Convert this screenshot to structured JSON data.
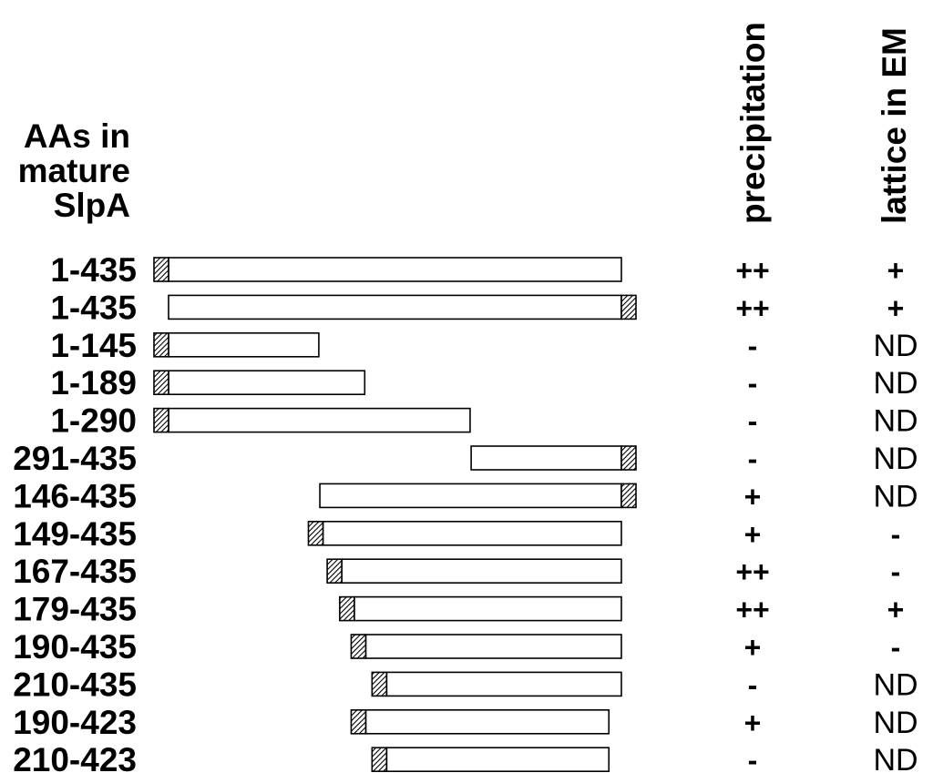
{
  "header": {
    "row_label_lines": [
      "AAs in",
      "mature",
      "SlpA"
    ],
    "columns": [
      "precipitation",
      "lattice in EM"
    ]
  },
  "colors": {
    "ink": "#000000",
    "bar_fill": "#ffffff"
  },
  "icons": {
    "tag": "hatched-tag-box"
  },
  "constructs": [
    {
      "label": "1-435",
      "start": 1,
      "end": 435,
      "tag": "N",
      "precipitation": "++",
      "lattice": "+"
    },
    {
      "label": "1-435",
      "start": 1,
      "end": 435,
      "tag": "C",
      "precipitation": "++",
      "lattice": "+"
    },
    {
      "label": "1-145",
      "start": 1,
      "end": 145,
      "tag": "N",
      "precipitation": "-",
      "lattice": "ND"
    },
    {
      "label": "1-189",
      "start": 1,
      "end": 189,
      "tag": "N",
      "precipitation": "-",
      "lattice": "ND"
    },
    {
      "label": "1-290",
      "start": 1,
      "end": 290,
      "tag": "N",
      "precipitation": "-",
      "lattice": "ND"
    },
    {
      "label": "291-435",
      "start": 291,
      "end": 435,
      "tag": "C",
      "precipitation": "-",
      "lattice": "ND"
    },
    {
      "label": "146-435",
      "start": 146,
      "end": 435,
      "tag": "C",
      "precipitation": "+",
      "lattice": "ND"
    },
    {
      "label": "149-435",
      "start": 149,
      "end": 435,
      "tag": "N",
      "precipitation": "+",
      "lattice": "-"
    },
    {
      "label": "167-435",
      "start": 167,
      "end": 435,
      "tag": "N",
      "precipitation": "++",
      "lattice": "-"
    },
    {
      "label": "179-435",
      "start": 179,
      "end": 435,
      "tag": "N",
      "precipitation": "++",
      "lattice": "+"
    },
    {
      "label": "190-435",
      "start": 190,
      "end": 435,
      "tag": "N",
      "precipitation": "+",
      "lattice": "-"
    },
    {
      "label": "210-435",
      "start": 210,
      "end": 435,
      "tag": "N",
      "precipitation": "-",
      "lattice": "ND"
    },
    {
      "label": "190-423",
      "start": 190,
      "end": 423,
      "tag": "N",
      "precipitation": "+",
      "lattice": "ND"
    },
    {
      "label": "210-423",
      "start": 210,
      "end": 423,
      "tag": "N",
      "precipitation": "-",
      "lattice": "ND"
    }
  ]
}
